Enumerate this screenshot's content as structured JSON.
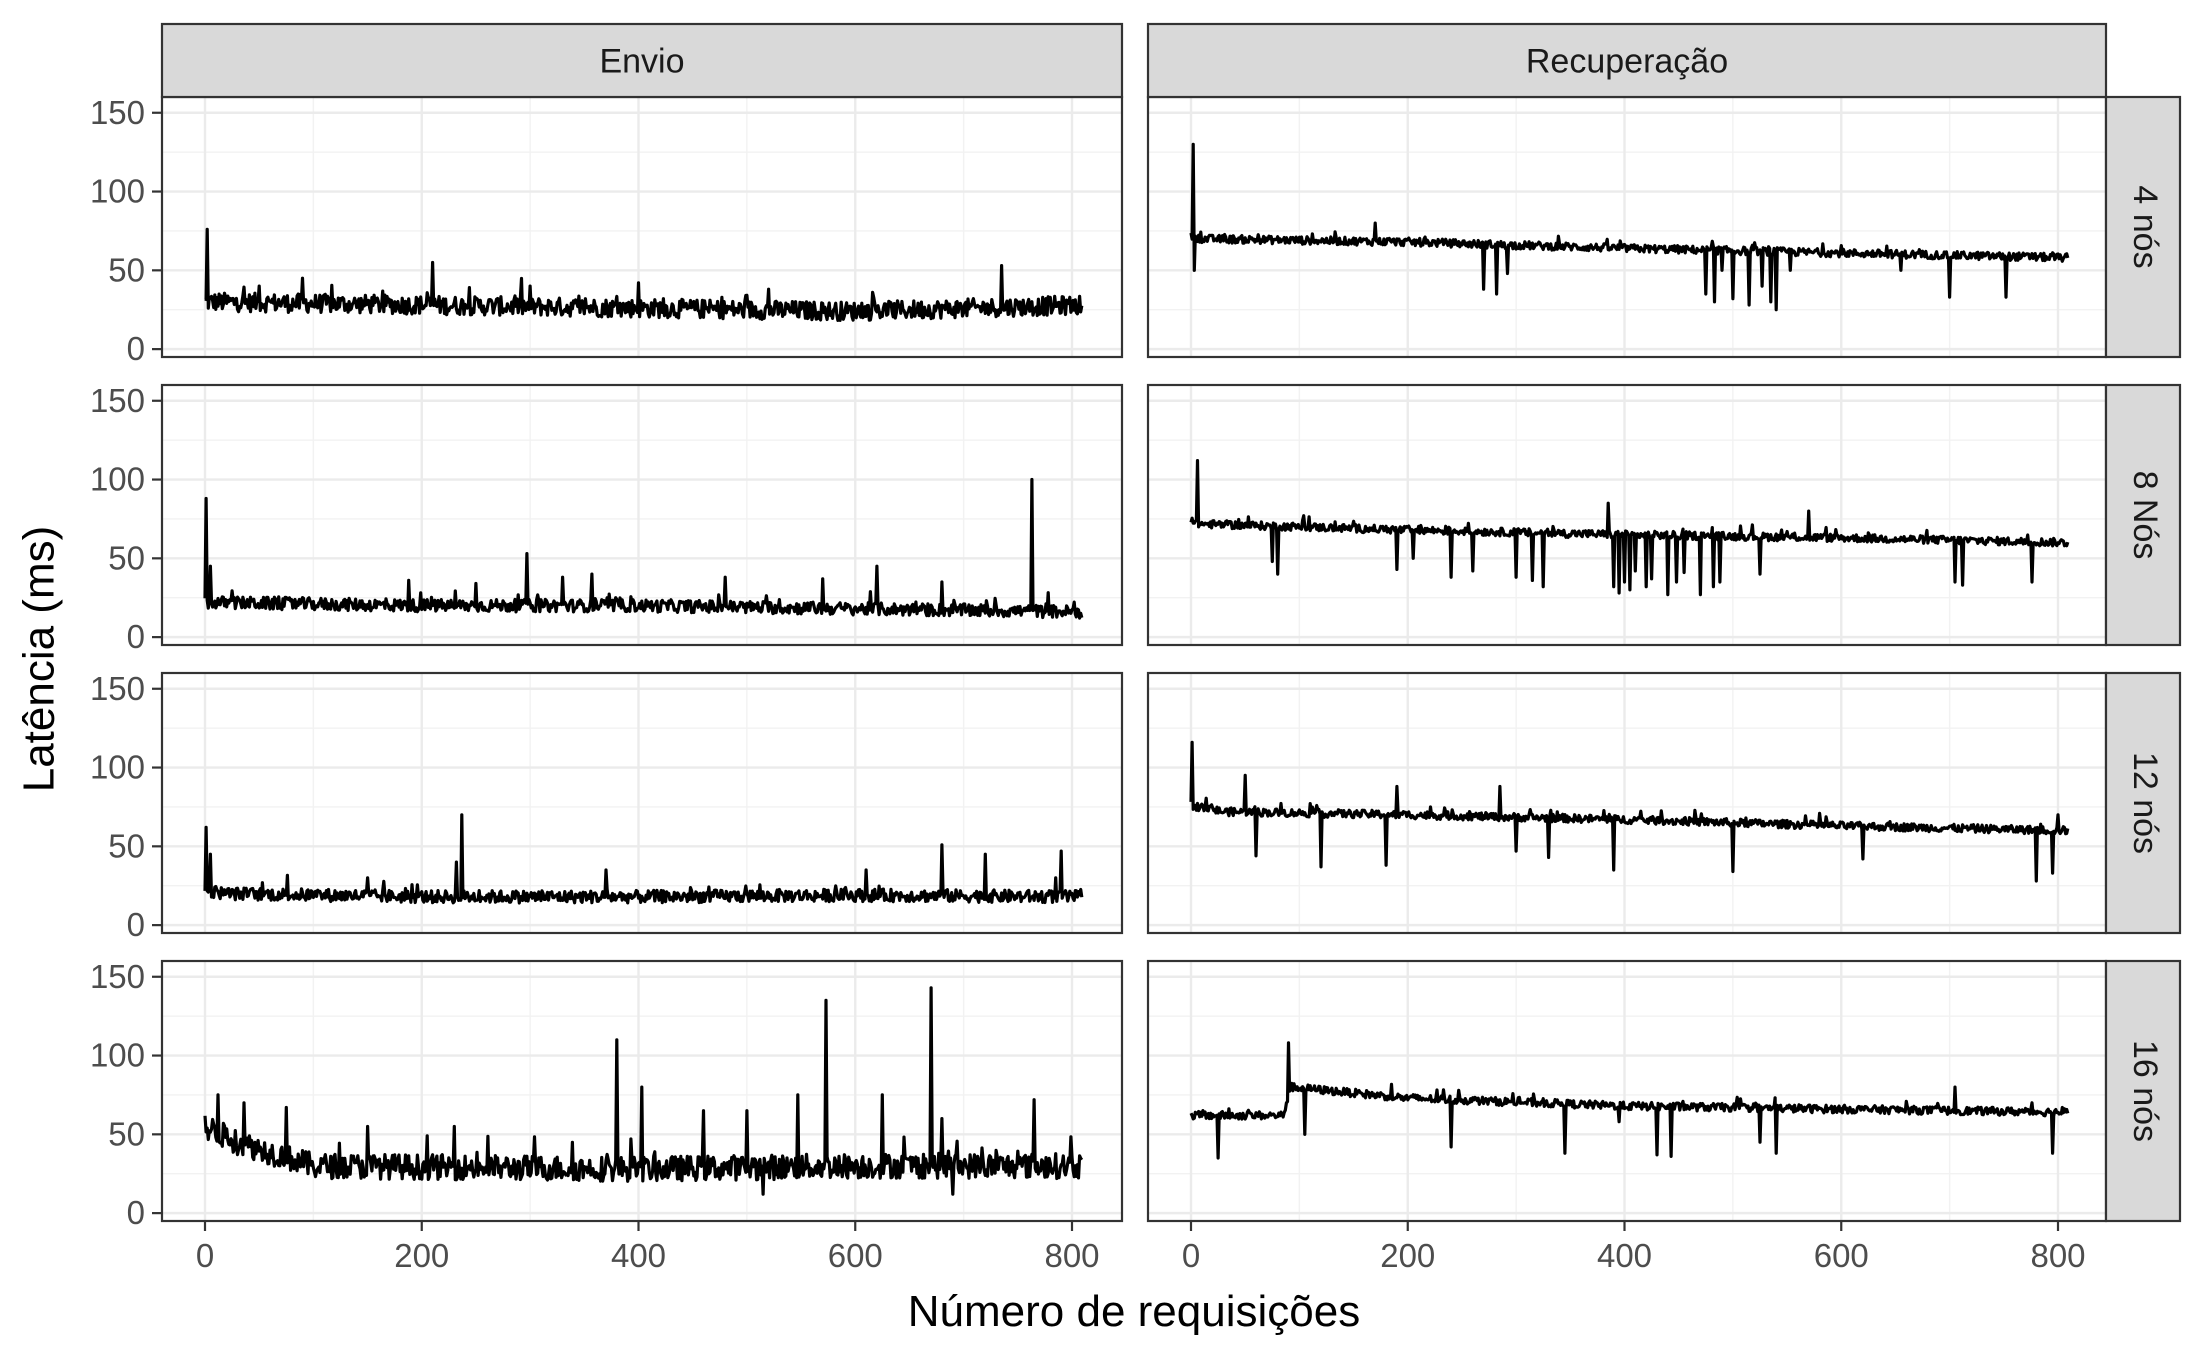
{
  "chart_data": {
    "type": "line",
    "xlabel": "Número de requisições",
    "ylabel": "Latência (ms)",
    "xlim": [
      0,
      810
    ],
    "ylim": [
      0,
      150
    ],
    "x_ticks": [
      0,
      200,
      400,
      600,
      800
    ],
    "y_ticks": [
      0,
      50,
      100,
      150
    ],
    "grid": true,
    "columns": [
      "Envio",
      "Recuperação"
    ],
    "rows": [
      "4 nós",
      "8 Nós",
      "12 nós",
      "16 nós"
    ],
    "n_points": 810,
    "panels": [
      {
        "column": "Envio",
        "row": "4 nós",
        "base": [
          [
            0,
            30
          ],
          [
            200,
            28
          ],
          [
            400,
            26
          ],
          [
            600,
            24
          ],
          [
            810,
            28
          ]
        ],
        "noise": 6,
        "spikes": [
          [
            2,
            76
          ],
          [
            210,
            55
          ],
          [
            735,
            53
          ],
          [
            90,
            45
          ],
          [
            300,
            40
          ],
          [
            520,
            38
          ],
          [
            50,
            40
          ],
          [
            400,
            42
          ]
        ]
      },
      {
        "column": "Recuperação",
        "row": "4 nós",
        "base": [
          [
            0,
            72
          ],
          [
            10,
            70
          ],
          [
            200,
            68
          ],
          [
            400,
            64
          ],
          [
            600,
            61
          ],
          [
            810,
            58
          ]
        ],
        "noise": 2.5,
        "spikes": [
          [
            2,
            130
          ],
          [
            3,
            50
          ],
          [
            170,
            80
          ],
          [
            270,
            38
          ],
          [
            282,
            35
          ],
          [
            292,
            48
          ],
          [
            475,
            35
          ],
          [
            483,
            30
          ],
          [
            490,
            50
          ],
          [
            500,
            32
          ],
          [
            515,
            28
          ],
          [
            527,
            40
          ],
          [
            535,
            30
          ],
          [
            540,
            25
          ],
          [
            553,
            50
          ],
          [
            655,
            50
          ],
          [
            700,
            33
          ],
          [
            752,
            33
          ]
        ]
      },
      {
        "column": "Envio",
        "row": "8 Nós",
        "base": [
          [
            0,
            22
          ],
          [
            200,
            20
          ],
          [
            400,
            20
          ],
          [
            600,
            18
          ],
          [
            810,
            16
          ]
        ],
        "noise": 4,
        "spikes": [
          [
            1,
            88
          ],
          [
            5,
            45
          ],
          [
            297,
            53
          ],
          [
            330,
            38
          ],
          [
            357,
            40
          ],
          [
            480,
            38
          ],
          [
            570,
            37
          ],
          [
            620,
            45
          ],
          [
            763,
            100
          ],
          [
            680,
            35
          ],
          [
            188,
            36
          ],
          [
            250,
            34
          ]
        ]
      },
      {
        "column": "Recuperação",
        "row": "8 Nós",
        "base": [
          [
            0,
            72
          ],
          [
            200,
            68
          ],
          [
            400,
            65
          ],
          [
            600,
            63
          ],
          [
            810,
            60
          ]
        ],
        "noise": 2.5,
        "spikes": [
          [
            6,
            112
          ],
          [
            75,
            48
          ],
          [
            80,
            40
          ],
          [
            190,
            43
          ],
          [
            205,
            50
          ],
          [
            240,
            38
          ],
          [
            260,
            42
          ],
          [
            300,
            38
          ],
          [
            315,
            36
          ],
          [
            325,
            32
          ],
          [
            385,
            38
          ],
          [
            390,
            32
          ],
          [
            395,
            28
          ],
          [
            400,
            35
          ],
          [
            405,
            30
          ],
          [
            410,
            42
          ],
          [
            420,
            32
          ],
          [
            425,
            37
          ],
          [
            440,
            27
          ],
          [
            448,
            35
          ],
          [
            455,
            41
          ],
          [
            470,
            27
          ],
          [
            482,
            32
          ],
          [
            488,
            35
          ],
          [
            525,
            40
          ],
          [
            705,
            35
          ],
          [
            712,
            33
          ],
          [
            776,
            35
          ],
          [
            385,
            85
          ],
          [
            570,
            80
          ]
        ]
      },
      {
        "column": "Envio",
        "row": "12 nós",
        "base": [
          [
            0,
            22
          ],
          [
            20,
            20
          ],
          [
            200,
            18
          ],
          [
            400,
            18
          ],
          [
            600,
            19
          ],
          [
            810,
            18
          ]
        ],
        "noise": 4,
        "spikes": [
          [
            1,
            62
          ],
          [
            5,
            45
          ],
          [
            237,
            70
          ],
          [
            232,
            40
          ],
          [
            370,
            35
          ],
          [
            610,
            35
          ],
          [
            680,
            51
          ],
          [
            720,
            45
          ],
          [
            790,
            47
          ],
          [
            785,
            30
          ],
          [
            150,
            30
          ]
        ]
      },
      {
        "column": "Recuperação",
        "row": "12 nós",
        "base": [
          [
            0,
            76
          ],
          [
            30,
            72
          ],
          [
            200,
            70
          ],
          [
            400,
            67
          ],
          [
            600,
            63
          ],
          [
            810,
            60
          ]
        ],
        "noise": 2.5,
        "spikes": [
          [
            1,
            116
          ],
          [
            50,
            95
          ],
          [
            60,
            44
          ],
          [
            120,
            37
          ],
          [
            180,
            38
          ],
          [
            190,
            88
          ],
          [
            285,
            88
          ],
          [
            300,
            47
          ],
          [
            330,
            43
          ],
          [
            390,
            35
          ],
          [
            500,
            34
          ],
          [
            620,
            42
          ],
          [
            780,
            28
          ],
          [
            795,
            33
          ],
          [
            800,
            70
          ]
        ]
      },
      {
        "column": "Envio",
        "row": "16 nós",
        "base": [
          [
            0,
            55
          ],
          [
            30,
            45
          ],
          [
            100,
            30
          ],
          [
            400,
            28
          ],
          [
            600,
            30
          ],
          [
            810,
            30
          ]
        ],
        "noise": 8,
        "spikes": [
          [
            12,
            75
          ],
          [
            36,
            70
          ],
          [
            75,
            67
          ],
          [
            150,
            55
          ],
          [
            230,
            55
          ],
          [
            380,
            110
          ],
          [
            403,
            80
          ],
          [
            460,
            65
          ],
          [
            500,
            65
          ],
          [
            547,
            75
          ],
          [
            573,
            135
          ],
          [
            625,
            75
          ],
          [
            670,
            143
          ],
          [
            680,
            60
          ],
          [
            765,
            72
          ],
          [
            515,
            12
          ],
          [
            690,
            12
          ]
        ]
      },
      {
        "column": "Recuperação",
        "row": "16 nós",
        "base": [
          [
            0,
            62
          ],
          [
            85,
            62
          ],
          [
            92,
            80
          ],
          [
            200,
            73
          ],
          [
            400,
            68
          ],
          [
            600,
            66
          ],
          [
            810,
            64
          ]
        ],
        "noise": 2.5,
        "spikes": [
          [
            25,
            35
          ],
          [
            90,
            108
          ],
          [
            105,
            50
          ],
          [
            240,
            42
          ],
          [
            345,
            38
          ],
          [
            395,
            58
          ],
          [
            430,
            37
          ],
          [
            443,
            36
          ],
          [
            525,
            45
          ],
          [
            540,
            38
          ],
          [
            705,
            80
          ],
          [
            795,
            38
          ]
        ]
      }
    ]
  }
}
